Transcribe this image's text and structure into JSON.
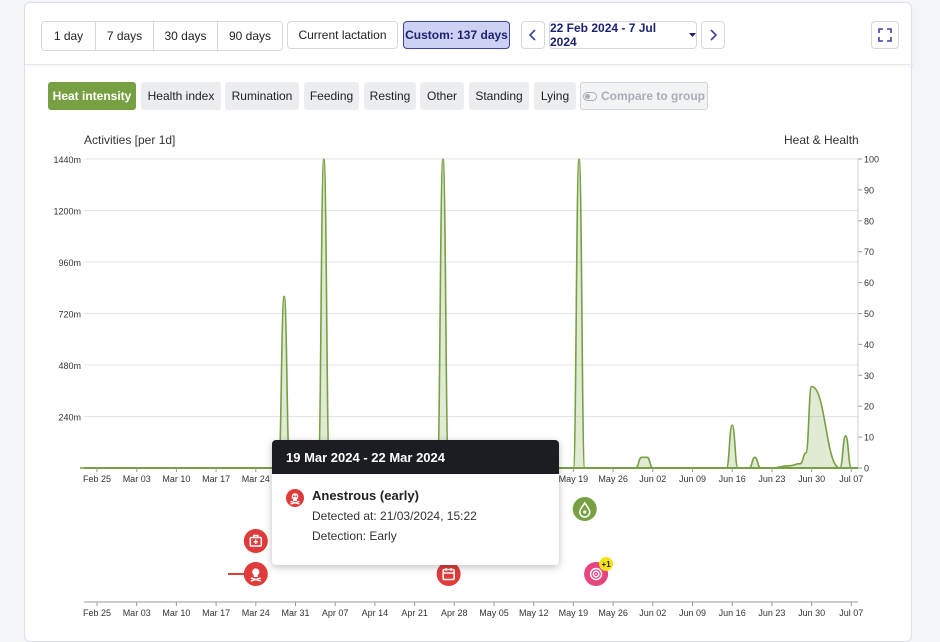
{
  "toolbar": {
    "periods": [
      "1 day",
      "7 days",
      "30 days",
      "90 days"
    ],
    "current_lactation": "Current lactation",
    "custom": "Custom: 137 days",
    "date_range": "22 Feb 2024 - 7 Jul 2024",
    "prev": "‹",
    "next": "›"
  },
  "tabs": {
    "heat_intensity": "Heat intensity",
    "health_index": "Health index",
    "rumination": "Rumination",
    "feeding": "Feeding",
    "resting": "Resting",
    "other": "Other",
    "standing": "Standing",
    "lying": "Lying",
    "compare": "Compare to group"
  },
  "chart_data": {
    "type": "area",
    "ylabel": "Activities [per 1d]",
    "y2label": "Heat & Health",
    "ylim": [
      0,
      1440
    ],
    "y2lim": [
      0,
      100
    ],
    "yticks": [
      "1440m",
      "1200m",
      "960m",
      "720m",
      "480m",
      "240m"
    ],
    "y2ticks": [
      0,
      10,
      20,
      30,
      40,
      50,
      60,
      70,
      80,
      90,
      100
    ],
    "xticks": [
      "Feb 25",
      "Mar 03",
      "Mar 10",
      "Mar 17",
      "Mar 24",
      "Mar 31",
      "Apr 07",
      "Apr 14",
      "Apr 21",
      "Apr 28",
      "May 05",
      "May 12",
      "May 19",
      "May 26",
      "Jun 02",
      "Jun 09",
      "Jun 16",
      "Jun 23",
      "Jun 30",
      "Jul 07"
    ],
    "series": [
      {
        "color": "#77a042",
        "x": [
          "Feb 22",
          "Mar 28",
          "Mar 29",
          "Mar 30",
          "Apr 04",
          "Apr 05",
          "Apr 06",
          "Apr 25",
          "Apr 26",
          "Apr 27",
          "May 19",
          "May 20",
          "May 21",
          "May 30",
          "May 31",
          "Jun 01",
          "Jun 02",
          "Jun 15",
          "Jun 16",
          "Jun 17",
          "Jun 19",
          "Jun 20",
          "Jun 21",
          "Jun 23",
          "Jun 26",
          "Jun 28",
          "Jun 29",
          "Jun 30",
          "Jul 05",
          "Jul 06",
          "Jul 07"
        ],
        "values": [
          0,
          0,
          800,
          0,
          0,
          1440,
          0,
          0,
          1440,
          0,
          0,
          1440,
          0,
          0,
          50,
          50,
          0,
          0,
          200,
          0,
          0,
          50,
          0,
          0,
          10,
          20,
          70,
          380,
          0,
          150,
          0
        ]
      }
    ]
  },
  "events": {
    "row1": [
      {
        "date": "Mar 29",
        "icon": "heat-drop-icon",
        "color": "#77a042"
      },
      {
        "date": "May 21",
        "icon": "heat-drop-icon",
        "color": "#77a042"
      }
    ],
    "row2": [
      {
        "date": "Mar 24",
        "icon": "medical-kit-icon",
        "color": "#e03b3b"
      }
    ],
    "row3": [
      {
        "date": "Mar 24",
        "icon": "skull-icon",
        "color": "#e03b3b"
      },
      {
        "date": "Apr 27",
        "icon": "calendar-icon",
        "color": "#e03b3b"
      },
      {
        "date": "May 23",
        "icon": "target-icon",
        "color": "#e8457f",
        "badge": "+1"
      }
    ]
  },
  "tooltip": {
    "range": "19 Mar 2024 - 22 Mar 2024",
    "title": "Anestrous (early)",
    "detected": "Detected at: 21/03/2024, 15:22",
    "detection": "Detection: Early"
  }
}
